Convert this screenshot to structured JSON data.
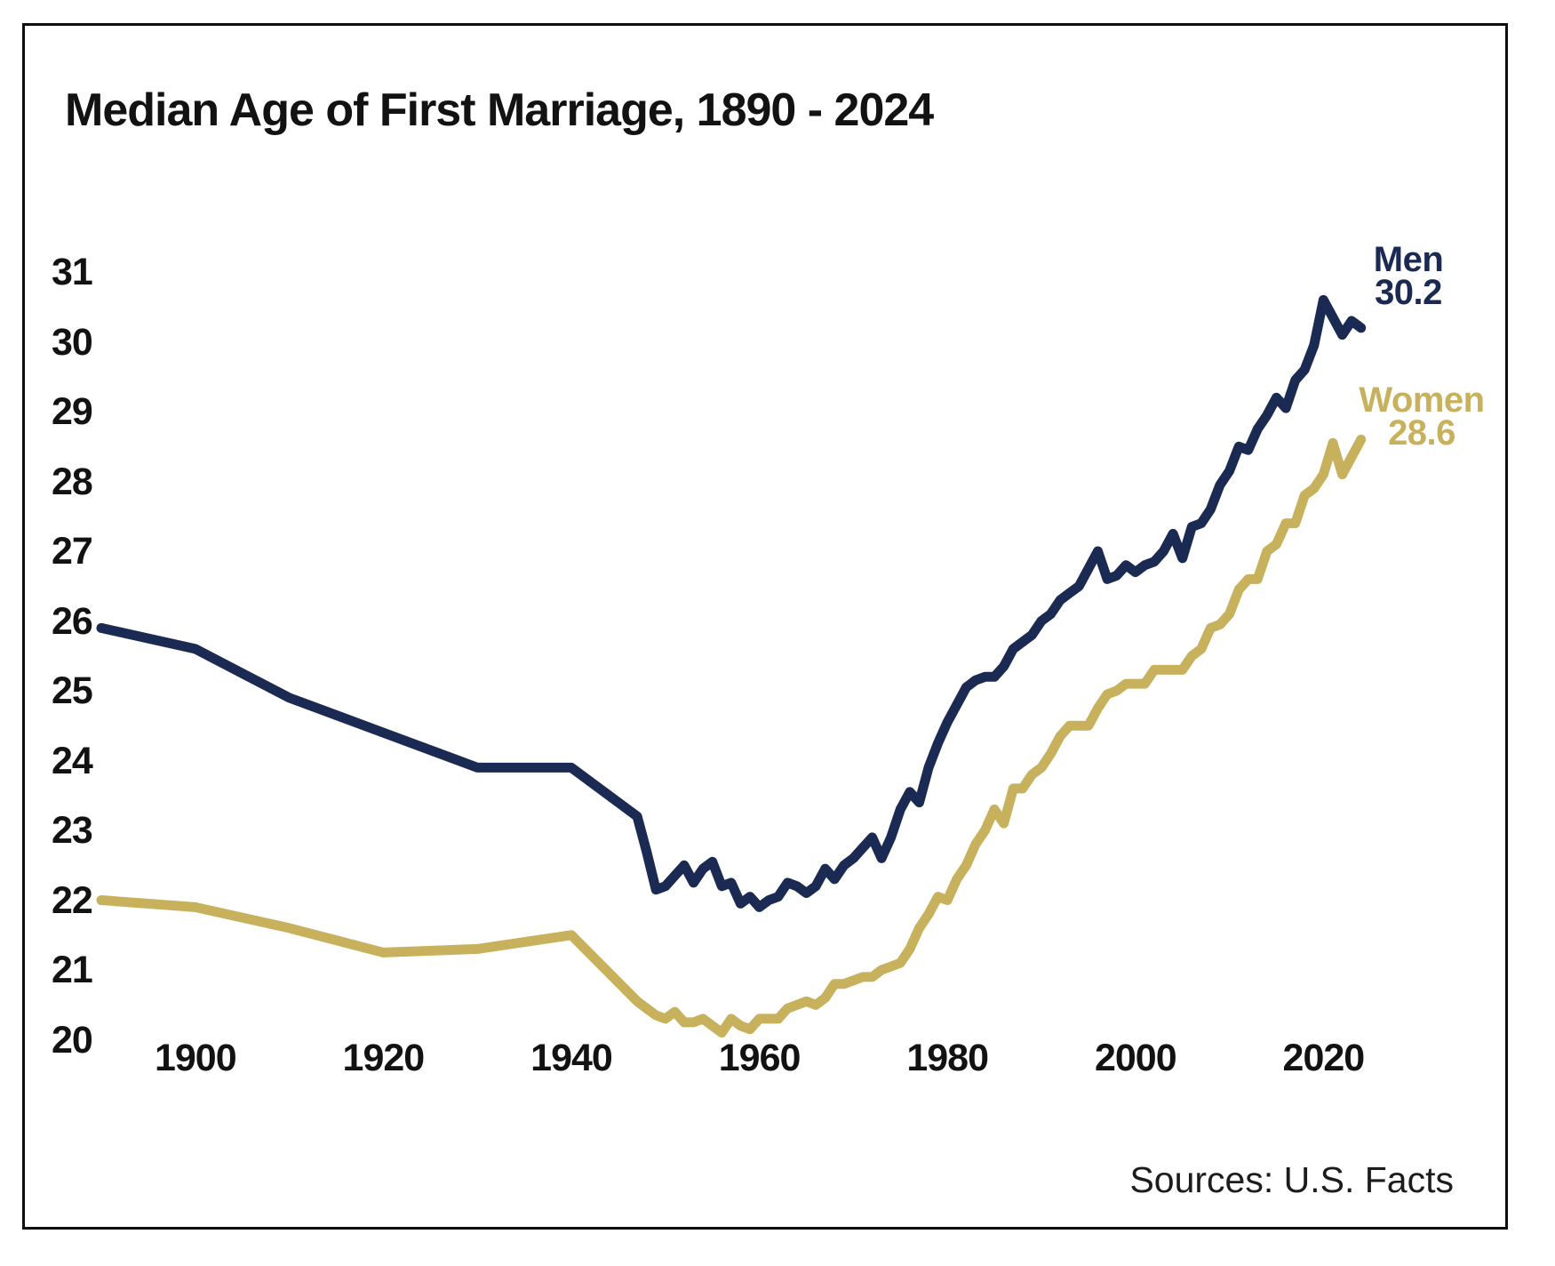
{
  "title": "Median Age of First Marriage, 1890 - 2024",
  "source_note": "Sources: U.S. Facts",
  "series_labels": {
    "men": {
      "label": "Men",
      "value": "30.2"
    },
    "women": {
      "label": "Women",
      "value": "28.6"
    }
  },
  "colors": {
    "men_line": "#1b2a52",
    "women_line": "#c8b15c",
    "text": "#121212",
    "frame_border": "#0c0e10",
    "background": "#ffffff"
  },
  "chart_data": {
    "type": "line",
    "title": "Median Age of First Marriage, 1890 - 2024",
    "xlabel": "",
    "ylabel": "",
    "xlim": [
      1890,
      2024
    ],
    "ylim": [
      20,
      31
    ],
    "grid": false,
    "legend_position": "end-of-line labels",
    "x_ticks": [
      1900,
      1920,
      1940,
      1960,
      1980,
      2000,
      2020
    ],
    "y_ticks": [
      31,
      30,
      29,
      28,
      27,
      26,
      25,
      24,
      23,
      22,
      21,
      20
    ],
    "series": [
      {
        "name": "Men",
        "color": "#1b2a52",
        "end_label": "30.2",
        "points": [
          [
            1890,
            25.9
          ],
          [
            1900,
            25.6
          ],
          [
            1910,
            24.9
          ],
          [
            1920,
            24.4
          ],
          [
            1930,
            23.9
          ],
          [
            1940,
            23.9
          ],
          [
            1947,
            23.2
          ],
          [
            1948,
            22.7
          ],
          [
            1949,
            22.15
          ],
          [
            1950,
            22.2
          ],
          [
            1951,
            22.35
          ],
          [
            1952,
            22.5
          ],
          [
            1953,
            22.25
          ],
          [
            1954,
            22.45
          ],
          [
            1955,
            22.55
          ],
          [
            1956,
            22.2
          ],
          [
            1957,
            22.25
          ],
          [
            1958,
            21.95
          ],
          [
            1959,
            22.05
          ],
          [
            1960,
            21.9
          ],
          [
            1961,
            22.0
          ],
          [
            1962,
            22.05
          ],
          [
            1963,
            22.25
          ],
          [
            1964,
            22.2
          ],
          [
            1965,
            22.1
          ],
          [
            1966,
            22.2
          ],
          [
            1967,
            22.45
          ],
          [
            1968,
            22.3
          ],
          [
            1969,
            22.5
          ],
          [
            1970,
            22.6
          ],
          [
            1971,
            22.75
          ],
          [
            1972,
            22.9
          ],
          [
            1973,
            22.6
          ],
          [
            1974,
            22.9
          ],
          [
            1975,
            23.3
          ],
          [
            1976,
            23.55
          ],
          [
            1977,
            23.4
          ],
          [
            1978,
            23.9
          ],
          [
            1979,
            24.25
          ],
          [
            1980,
            24.55
          ],
          [
            1981,
            24.8
          ],
          [
            1982,
            25.05
          ],
          [
            1983,
            25.15
          ],
          [
            1984,
            25.2
          ],
          [
            1985,
            25.2
          ],
          [
            1986,
            25.35
          ],
          [
            1987,
            25.6
          ],
          [
            1988,
            25.7
          ],
          [
            1989,
            25.8
          ],
          [
            1990,
            26.0
          ],
          [
            1991,
            26.1
          ],
          [
            1992,
            26.3
          ],
          [
            1993,
            26.4
          ],
          [
            1994,
            26.5
          ],
          [
            1995,
            26.75
          ],
          [
            1996,
            27.0
          ],
          [
            1997,
            26.6
          ],
          [
            1998,
            26.65
          ],
          [
            1999,
            26.8
          ],
          [
            2000,
            26.7
          ],
          [
            2001,
            26.8
          ],
          [
            2002,
            26.85
          ],
          [
            2003,
            27.0
          ],
          [
            2004,
            27.25
          ],
          [
            2005,
            26.9
          ],
          [
            2006,
            27.35
          ],
          [
            2007,
            27.4
          ],
          [
            2008,
            27.6
          ],
          [
            2009,
            27.95
          ],
          [
            2010,
            28.15
          ],
          [
            2011,
            28.5
          ],
          [
            2012,
            28.45
          ],
          [
            2013,
            28.75
          ],
          [
            2014,
            28.95
          ],
          [
            2015,
            29.2
          ],
          [
            2016,
            29.05
          ],
          [
            2017,
            29.45
          ],
          [
            2018,
            29.6
          ],
          [
            2019,
            29.95
          ],
          [
            2020,
            30.6
          ],
          [
            2021,
            30.35
          ],
          [
            2022,
            30.1
          ],
          [
            2023,
            30.3
          ],
          [
            2024,
            30.2
          ]
        ]
      },
      {
        "name": "Women",
        "color": "#c8b15c",
        "end_label": "28.6",
        "points": [
          [
            1890,
            22.0
          ],
          [
            1900,
            21.9
          ],
          [
            1910,
            21.6
          ],
          [
            1920,
            21.25
          ],
          [
            1930,
            21.3
          ],
          [
            1940,
            21.5
          ],
          [
            1947,
            20.55
          ],
          [
            1948,
            20.45
          ],
          [
            1949,
            20.35
          ],
          [
            1950,
            20.3
          ],
          [
            1951,
            20.4
          ],
          [
            1952,
            20.25
          ],
          [
            1953,
            20.25
          ],
          [
            1954,
            20.3
          ],
          [
            1955,
            20.2
          ],
          [
            1956,
            20.1
          ],
          [
            1957,
            20.3
          ],
          [
            1958,
            20.2
          ],
          [
            1959,
            20.15
          ],
          [
            1960,
            20.3
          ],
          [
            1961,
            20.3
          ],
          [
            1962,
            20.3
          ],
          [
            1963,
            20.45
          ],
          [
            1964,
            20.5
          ],
          [
            1965,
            20.55
          ],
          [
            1966,
            20.5
          ],
          [
            1967,
            20.6
          ],
          [
            1968,
            20.8
          ],
          [
            1969,
            20.8
          ],
          [
            1970,
            20.85
          ],
          [
            1971,
            20.9
          ],
          [
            1972,
            20.9
          ],
          [
            1973,
            21.0
          ],
          [
            1974,
            21.05
          ],
          [
            1975,
            21.1
          ],
          [
            1976,
            21.3
          ],
          [
            1977,
            21.6
          ],
          [
            1978,
            21.8
          ],
          [
            1979,
            22.05
          ],
          [
            1980,
            22.0
          ],
          [
            1981,
            22.3
          ],
          [
            1982,
            22.5
          ],
          [
            1983,
            22.8
          ],
          [
            1984,
            23.0
          ],
          [
            1985,
            23.3
          ],
          [
            1986,
            23.1
          ],
          [
            1987,
            23.6
          ],
          [
            1988,
            23.6
          ],
          [
            1989,
            23.8
          ],
          [
            1990,
            23.9
          ],
          [
            1991,
            24.1
          ],
          [
            1992,
            24.35
          ],
          [
            1993,
            24.5
          ],
          [
            1994,
            24.5
          ],
          [
            1995,
            24.5
          ],
          [
            1996,
            24.75
          ],
          [
            1997,
            24.95
          ],
          [
            1998,
            25.0
          ],
          [
            1999,
            25.1
          ],
          [
            2000,
            25.1
          ],
          [
            2001,
            25.1
          ],
          [
            2002,
            25.3
          ],
          [
            2003,
            25.3
          ],
          [
            2004,
            25.3
          ],
          [
            2005,
            25.3
          ],
          [
            2006,
            25.5
          ],
          [
            2007,
            25.6
          ],
          [
            2008,
            25.9
          ],
          [
            2009,
            25.95
          ],
          [
            2010,
            26.1
          ],
          [
            2011,
            26.45
          ],
          [
            2012,
            26.6
          ],
          [
            2013,
            26.6
          ],
          [
            2014,
            27.0
          ],
          [
            2015,
            27.1
          ],
          [
            2016,
            27.4
          ],
          [
            2017,
            27.4
          ],
          [
            2018,
            27.8
          ],
          [
            2019,
            27.9
          ],
          [
            2020,
            28.1
          ],
          [
            2021,
            28.55
          ],
          [
            2022,
            28.1
          ],
          [
            2023,
            28.35
          ],
          [
            2024,
            28.6
          ]
        ]
      }
    ]
  }
}
